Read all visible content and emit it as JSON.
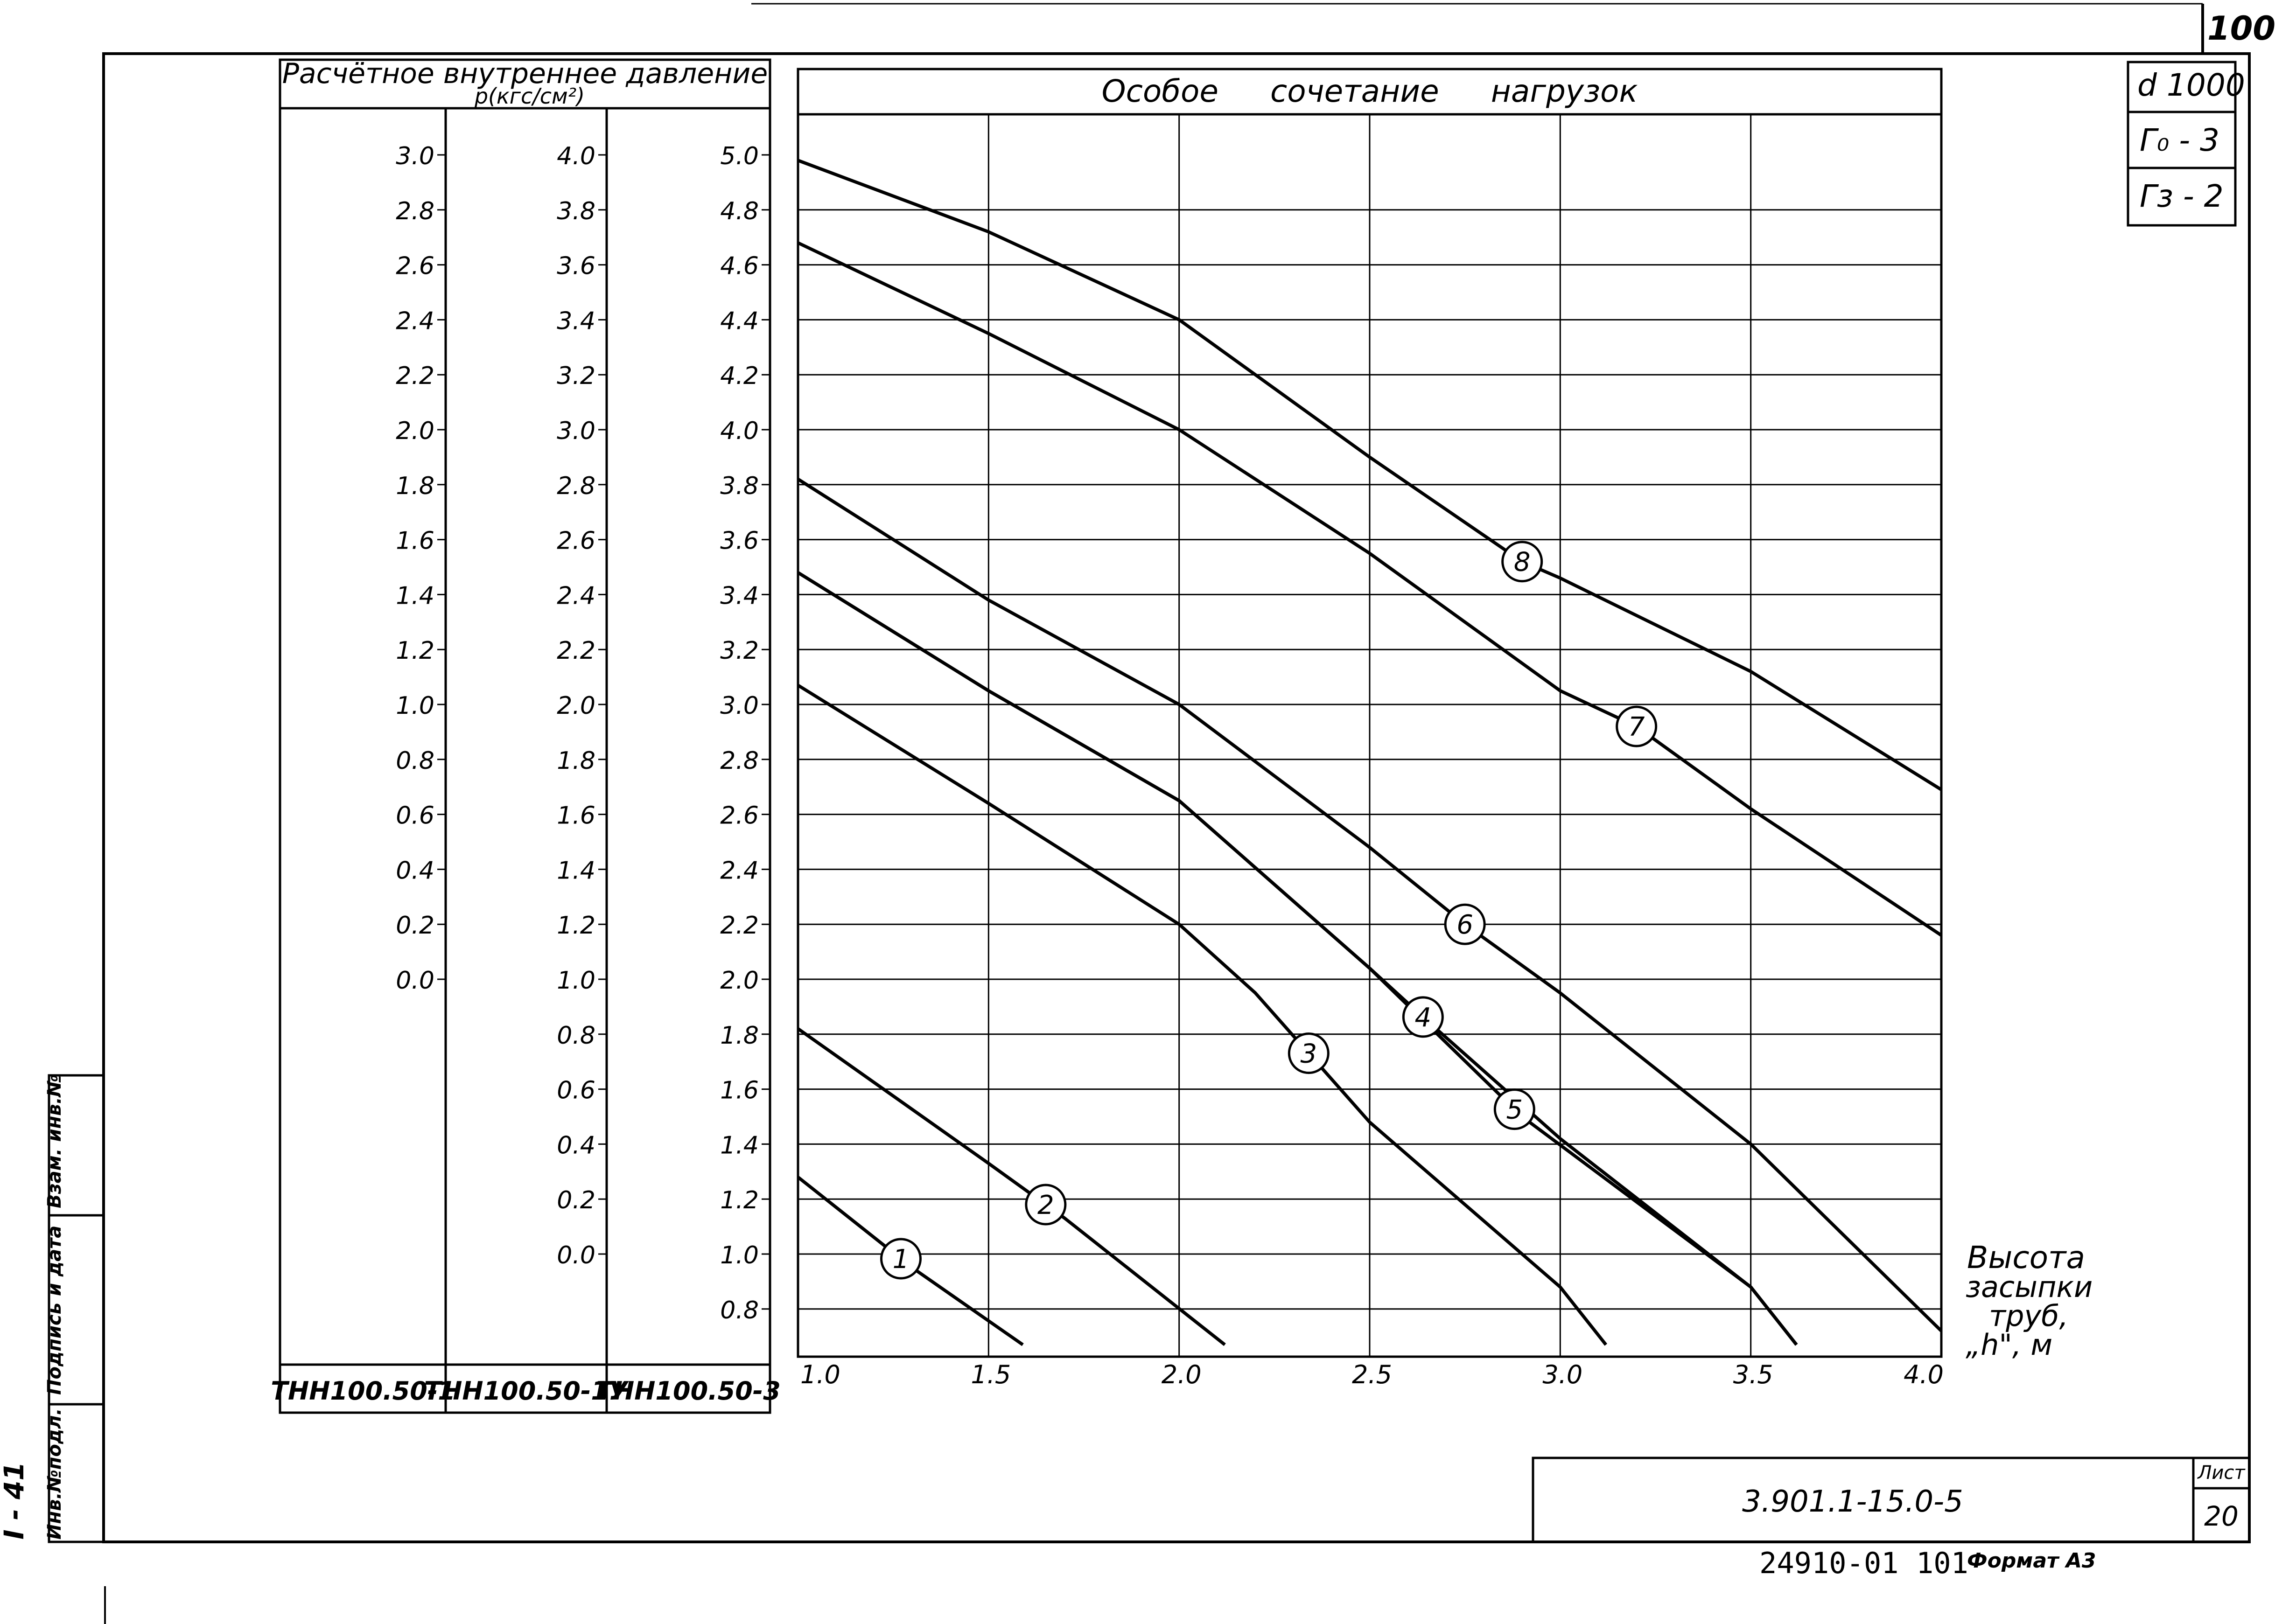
{
  "page_number": "100",
  "header": {
    "table_title": "Расчётное внутреннее давление",
    "table_subtitle": "p(кгс/см²)",
    "chart_title": "Особое сочетание нагрузок"
  },
  "badges": [
    "d 1000",
    "Г₀ - 3",
    "Гз - 2"
  ],
  "pressure_table": {
    "columns": [
      {
        "product": "ТНН100.50-1",
        "ticks": [
          "3.0",
          "2.8",
          "2.6",
          "2.4",
          "2.2",
          "2.0",
          "1.8",
          "1.6",
          "1.4",
          "1.2",
          "1.0",
          "0.8",
          "0.6",
          "0.4",
          "0.2",
          "0.0"
        ]
      },
      {
        "product": "ТНН100.50-1У",
        "ticks": [
          "4.0",
          "3.8",
          "3.6",
          "3.4",
          "3.2",
          "3.0",
          "2.8",
          "2.6",
          "2.4",
          "2.2",
          "2.0",
          "1.8",
          "1.6",
          "1.4",
          "1.2",
          "1.0",
          "0.8",
          "0.6",
          "0.4",
          "0.2",
          "0.0"
        ]
      },
      {
        "product": "ТНН100.50-3",
        "ticks": [
          "5.0",
          "4.8",
          "4.6",
          "4.4",
          "4.2",
          "4.0",
          "3.8",
          "3.6",
          "3.4",
          "3.2",
          "3.0",
          "2.8",
          "2.6",
          "2.4",
          "2.2",
          "2.0",
          "1.8",
          "1.6",
          "1.4",
          "1.2",
          "1.0",
          "0.8"
        ]
      }
    ]
  },
  "chart_data": {
    "type": "line",
    "title": "Особое сочетание нагрузок",
    "xlabel": "Высота засыпки труб, „h\", м",
    "ylabel": "p(кгс/см²)",
    "xlim": [
      1.0,
      4.0
    ],
    "ylim": [
      0.7,
      5.1
    ],
    "x_ticks": [
      "1.0",
      "1.5",
      "2.0",
      "2.5",
      "3.0",
      "3.5",
      "4.0"
    ],
    "y_ticks_reference": "ТНН100.50-3",
    "grid": true,
    "series": [
      {
        "name": "1",
        "points": [
          [
            1.0,
            1.28
          ],
          [
            1.3,
            0.95
          ],
          [
            1.59,
            0.67
          ]
        ]
      },
      {
        "name": "2",
        "points": [
          [
            1.0,
            1.82
          ],
          [
            1.5,
            1.33
          ],
          [
            1.7,
            1.13
          ],
          [
            2.12,
            0.67
          ]
        ]
      },
      {
        "name": "3",
        "points": [
          [
            1.0,
            3.07
          ],
          [
            1.5,
            2.64
          ],
          [
            2.0,
            2.2
          ],
          [
            2.2,
            1.95
          ],
          [
            2.5,
            1.48
          ],
          [
            3.0,
            0.88
          ],
          [
            3.12,
            0.67
          ]
        ]
      },
      {
        "name": "4",
        "points": [
          [
            1.0,
            3.48
          ],
          [
            1.5,
            3.05
          ],
          [
            2.0,
            2.65
          ],
          [
            2.5,
            2.04
          ],
          [
            2.65,
            1.85
          ],
          [
            3.0,
            1.42
          ],
          [
            3.5,
            0.88
          ],
          [
            3.62,
            0.67
          ]
        ]
      },
      {
        "name": "5",
        "points": [
          [
            1.0,
            3.48
          ],
          [
            1.5,
            3.05
          ],
          [
            2.0,
            2.65
          ],
          [
            2.5,
            2.04
          ],
          [
            2.9,
            1.5
          ],
          [
            3.5,
            0.88
          ],
          [
            3.62,
            0.67
          ]
        ]
      },
      {
        "name": "6",
        "points": [
          [
            1.0,
            3.82
          ],
          [
            1.5,
            3.38
          ],
          [
            2.0,
            3.0
          ],
          [
            2.5,
            2.48
          ],
          [
            2.75,
            2.2
          ],
          [
            3.0,
            1.95
          ],
          [
            3.5,
            1.4
          ],
          [
            4.0,
            0.72
          ]
        ]
      },
      {
        "name": "7",
        "points": [
          [
            1.0,
            4.68
          ],
          [
            1.5,
            4.35
          ],
          [
            2.0,
            4.0
          ],
          [
            2.5,
            3.55
          ],
          [
            3.0,
            3.05
          ],
          [
            3.2,
            2.92
          ],
          [
            3.5,
            2.62
          ],
          [
            4.0,
            2.16
          ]
        ]
      },
      {
        "name": "8",
        "points": [
          [
            1.0,
            4.98
          ],
          [
            1.5,
            4.72
          ],
          [
            2.0,
            4.4
          ],
          [
            2.5,
            3.9
          ],
          [
            2.9,
            3.52
          ],
          [
            3.0,
            3.46
          ],
          [
            3.5,
            3.12
          ],
          [
            4.0,
            2.69
          ]
        ]
      }
    ]
  },
  "axis_caption": [
    "Высота",
    "засыпки",
    "труб,",
    "„h\", м"
  ],
  "side_stamp": {
    "labels": [
      "Взам. инв.№",
      "Подпись и дата",
      "Инв.№подл."
    ],
    "margin_label": "I - 41"
  },
  "title_block": {
    "document_code": "3.901.1-15.0-5",
    "sheet_label": "Лист",
    "sheet_number": "20",
    "footer_code": "24910-01 101",
    "format_label": "Формат А3"
  }
}
